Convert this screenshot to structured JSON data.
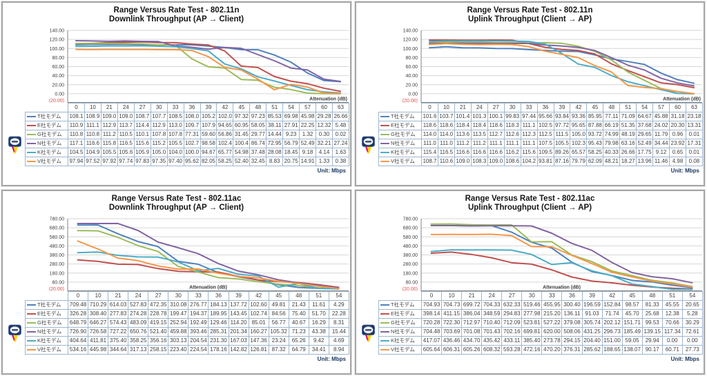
{
  "colors": {
    "grid": "#d6d6d6",
    "axis": "#808080",
    "negative_tick": "#e04b4b",
    "table_border": "#9eb6ce",
    "unit_text": "#17365d",
    "text": "#404040",
    "panel_border": "#a6a6a6"
  },
  "award_icon_label": "award-medal",
  "chart_data": [
    {
      "type": "line",
      "title": "Range Versus Rate Test - 802.11n",
      "subtitle": "Downlink  Throughput (AP → Client)",
      "xlabel": "Attenuation (dB)",
      "xlabel_align": "right",
      "unit_label": "Unit: Mbps",
      "legend_position": "table-left",
      "grid": true,
      "categories": [
        "0",
        "10",
        "21",
        "24",
        "27",
        "30",
        "33",
        "36",
        "39",
        "42",
        "45",
        "48",
        "51",
        "54",
        "57",
        "60",
        "63"
      ],
      "ylim": [
        -20,
        140
      ],
      "yticks": [
        140,
        120,
        100,
        80,
        60,
        40,
        20,
        0
      ],
      "ytick_labels": [
        "140.00",
        "120.00",
        "100.00",
        "80.00",
        "60.00",
        "40.00",
        "20.00",
        "0.00"
      ],
      "ymin": -20,
      "ymin_label": "(20.00)",
      "award_series": "N社モデム",
      "series": [
        {
          "name": "T社モデム",
          "color": "#4F81BD",
          "values": [
            "108.1",
            "108.9",
            "109.0",
            "109.0",
            "108.7",
            "107.7",
            "108.5",
            "108.0",
            "105.2",
            "102.0",
            "97.32",
            "97.23",
            "85.53",
            "69.98",
            "45.98",
            "29.28",
            "26.66"
          ]
        },
        {
          "name": "E社モデム",
          "color": "#C0504D",
          "values": [
            "110.9",
            "111.1",
            "112.9",
            "113.7",
            "114.4",
            "112.9",
            "113.0",
            "109.7",
            "107.9",
            "94.65",
            "60.95",
            "58.05",
            "38.11",
            "27.91",
            "22.25",
            "12.32",
            "5.48"
          ]
        },
        {
          "name": "G社モデム",
          "color": "#9BBB59",
          "values": [
            "110.8",
            "110.8",
            "111.2",
            "110.5",
            "110.1",
            "107.8",
            "107.8",
            "77.31",
            "59.60",
            "56.86",
            "31.45",
            "29.77",
            "14.44",
            "9.23",
            "1.32",
            "0.30",
            "0.02"
          ]
        },
        {
          "name": "N社モデム",
          "color": "#8064A2",
          "values": [
            "117.1",
            "116.6",
            "115.8",
            "116.5",
            "115.6",
            "115.2",
            "105.5",
            "102.7",
            "98.58",
            "102.4",
            "100.4",
            "86.74",
            "72.95",
            "56.79",
            "52.49",
            "32.21",
            "27.24"
          ]
        },
        {
          "name": "K社モデム",
          "color": "#4BACC6",
          "values": [
            "104.5",
            "104.9",
            "105.5",
            "105.6",
            "105.9",
            "105.0",
            "104.0",
            "100.0",
            "94.67",
            "65.77",
            "54.98",
            "37.48",
            "28.08",
            "18.45",
            "9.18",
            "4.14",
            "1.63"
          ]
        },
        {
          "name": "V社モデム",
          "color": "#F79646",
          "values": [
            "97.94",
            "97.52",
            "97.92",
            "97.74",
            "97.83",
            "97.35",
            "97.40",
            "95.62",
            "82.05",
            "58.25",
            "52.40",
            "32.45",
            "8.83",
            "20.75",
            "14.91",
            "1.33",
            "0.38"
          ]
        }
      ]
    },
    {
      "type": "line",
      "title": "Range Versus Rate Test - 802.11n",
      "subtitle": "Uplink Throughput (Client → AP)",
      "xlabel": "Attenuation (dB)",
      "xlabel_align": "right",
      "unit_label": "Unit: Mbps",
      "legend_position": "table-left",
      "grid": true,
      "categories": [
        "0",
        "10",
        "21",
        "24",
        "27",
        "30",
        "33",
        "36",
        "39",
        "42",
        "45",
        "48",
        "51",
        "54",
        "57",
        "60",
        "63"
      ],
      "ylim": [
        -20,
        140
      ],
      "yticks": [
        140,
        120,
        100,
        80,
        60,
        40,
        20,
        0
      ],
      "ytick_labels": [
        "140.00",
        "120.00",
        "100.00",
        "80.00",
        "60.00",
        "40.00",
        "20.00",
        "0.00"
      ],
      "ymin": -20,
      "ymin_label": "(20.00)",
      "award_series": "N社モデム",
      "series": [
        {
          "name": "T社モデム",
          "color": "#4F81BD",
          "values": [
            "101.6",
            "103.7",
            "101.4",
            "101.3",
            "100.1",
            "99.83",
            "97.44",
            "95.66",
            "93.84",
            "93.36",
            "85.95",
            "77.11",
            "71.09",
            "64.67",
            "45.88",
            "31.18",
            "23.18"
          ]
        },
        {
          "name": "E社モデム",
          "color": "#C0504D",
          "values": [
            "118.6",
            "118.6",
            "118.4",
            "118.4",
            "118.6",
            "118.3",
            "111.1",
            "102.5",
            "97.72",
            "95.65",
            "87.88",
            "66.19",
            "51.35",
            "37.68",
            "24.02",
            "20.30",
            "13.31"
          ]
        },
        {
          "name": "G社モデム",
          "color": "#9BBB59",
          "values": [
            "114.0",
            "114.0",
            "113.6",
            "113.5",
            "112.7",
            "112.6",
            "112.3",
            "112.5",
            "111.5",
            "105.0",
            "93.72",
            "74.99",
            "48.19",
            "29.65",
            "11.79",
            "0.96",
            "0.01"
          ]
        },
        {
          "name": "N社モデム",
          "color": "#8064A2",
          "values": [
            "111.0",
            "111.0",
            "111.2",
            "111.2",
            "111.1",
            "111.1",
            "111.1",
            "107.5",
            "105.5",
            "102.3",
            "95.43",
            "79.98",
            "63.16",
            "52.49",
            "34.44",
            "23.92",
            "17.31"
          ]
        },
        {
          "name": "K社モデム",
          "color": "#4BACC6",
          "values": [
            "115.4",
            "116.5",
            "116.6",
            "116.6",
            "116.6",
            "116.2",
            "115.6",
            "109.5",
            "89.26",
            "65.57",
            "58.25",
            "40.33",
            "26.66",
            "17.75",
            "9.12",
            "0.65",
            "0.01"
          ]
        },
        {
          "name": "V社モデム",
          "color": "#F79646",
          "values": [
            "108.7",
            "110.6",
            "109.0",
            "108.3",
            "109.0",
            "108.6",
            "104.2",
            "93.81",
            "87.16",
            "79.79",
            "62.09",
            "48.21",
            "18.27",
            "13.96",
            "11.46",
            "4.98",
            "0.08"
          ]
        }
      ]
    },
    {
      "type": "line",
      "title": "Range Versus Rate Test - 802.11ac",
      "subtitle": "Downlink  Throughput (AP → Client)",
      "xlabel": "Attenuation (dB)",
      "xlabel_align": "center",
      "unit_label": "Unit: Mbps",
      "legend_position": "table-left",
      "grid": true,
      "categories": [
        "0",
        "10",
        "21",
        "24",
        "27",
        "30",
        "33",
        "36",
        "39",
        "42",
        "45",
        "48",
        "51",
        "54"
      ],
      "ylim": [
        -20,
        780
      ],
      "yticks": [
        780,
        680,
        580,
        480,
        380,
        280,
        180,
        80
      ],
      "ytick_labels": [
        "780.00",
        "680.00",
        "580.00",
        "480.00",
        "380.00",
        "280.00",
        "180.00",
        "80.00"
      ],
      "ymin": -20,
      "ymin_label": "(20.00)",
      "award_series": "N社モデム",
      "series": [
        {
          "name": "T社モデム",
          "color": "#4F81BD",
          "values": [
            "709.48",
            "710.29",
            "614.03",
            "527.83",
            "472.35",
            "310.08",
            "276.77",
            "184.13",
            "137.72",
            "102.60",
            "49.81",
            "21.43",
            "11.61",
            "4.29"
          ]
        },
        {
          "name": "E社モデム",
          "color": "#C0504D",
          "values": [
            "326.28",
            "308.40",
            "277.83",
            "274.28",
            "228.78",
            "199.47",
            "194.37",
            "189.95",
            "143.45",
            "102.74",
            "84.56",
            "75.40",
            "51.70",
            "22.28"
          ]
        },
        {
          "name": "G社モデム",
          "color": "#9BBB59",
          "values": [
            "648.79",
            "646.27",
            "574.43",
            "483.09",
            "419.15",
            "252.94",
            "192.49",
            "129.46",
            "114.20",
            "85.01",
            "56.77",
            "40.67",
            "16.29",
            "8.31"
          ]
        },
        {
          "name": "N社モデム",
          "color": "#8064A2",
          "values": [
            "726.90",
            "726.58",
            "727.22",
            "650.76",
            "521.40",
            "459.88",
            "393.46",
            "285.31",
            "201.34",
            "160.27",
            "105.32",
            "71.23",
            "43.38",
            "15.44"
          ]
        },
        {
          "name": "K社モデム",
          "color": "#4BACC6",
          "values": [
            "404.64",
            "411.81",
            "375.40",
            "358.25",
            "356.16",
            "303.13",
            "204.54",
            "231.30",
            "167.03",
            "147.36",
            "23.24",
            "65.26",
            "9.42",
            "4.69"
          ]
        },
        {
          "name": "V社モデム",
          "color": "#F79646",
          "values": [
            "534.16",
            "445.98",
            "344.64",
            "317.13",
            "258.15",
            "223.40",
            "224.54",
            "178.16",
            "142.82",
            "126.81",
            "87.32",
            "64.79",
            "34.41",
            "8.94"
          ]
        }
      ]
    },
    {
      "type": "line",
      "title": "Range Versus Rate Test - 802.11ac",
      "subtitle": "Uplink Throughput (Client → AP)",
      "xlabel": "Attenuation (dB)",
      "xlabel_align": "center",
      "unit_label": "Unit: Mbps",
      "legend_position": "table-left",
      "grid": true,
      "categories": [
        "0",
        "10",
        "21",
        "24",
        "27",
        "30",
        "33",
        "36",
        "39",
        "42",
        "45",
        "48",
        "51",
        "54"
      ],
      "ylim": [
        -20,
        780
      ],
      "yticks": [
        780,
        680,
        580,
        480,
        380,
        280,
        180,
        80
      ],
      "ytick_labels": [
        "780.00",
        "680.00",
        "580.00",
        "480.00",
        "380.00",
        "280.00",
        "180.00",
        "80.00"
      ],
      "ymin": -20,
      "ymin_label": "(20.00)",
      "award_series": "N社モデム",
      "series": [
        {
          "name": "T社モデム",
          "color": "#4F81BD",
          "values": [
            "704.93",
            "704.73",
            "699.72",
            "704.33",
            "632.33",
            "519.46",
            "455.95",
            "300.40",
            "196.59",
            "152.84",
            "98.57",
            "81.33",
            "45.55",
            "20.65"
          ]
        },
        {
          "name": "E社モデム",
          "color": "#C0504D",
          "values": [
            "398.14",
            "411.15",
            "386.04",
            "348.59",
            "294.83",
            "277.98",
            "215.20",
            "136.11",
            "91.03",
            "71.74",
            "45.70",
            "25.68",
            "12.38",
            "5.28"
          ]
        },
        {
          "name": "G社モデム",
          "color": "#9BBB59",
          "values": [
            "720.28",
            "722.30",
            "712.97",
            "710.40",
            "712.09",
            "523.81",
            "527.22",
            "379.08",
            "305.74",
            "202.12",
            "151.71",
            "99.53",
            "70.66",
            "30.29"
          ]
        },
        {
          "name": "N社モデム",
          "color": "#8064A2",
          "values": [
            "704.48",
            "703.69",
            "701.08",
            "701.43",
            "702.16",
            "699.81",
            "620.00",
            "508.06",
            "431.25",
            "296.73",
            "185.49",
            "139.15",
            "117.34",
            "72.61"
          ]
        },
        {
          "name": "K社モデム",
          "color": "#4BACC6",
          "values": [
            "417.07",
            "436.46",
            "434.70",
            "435.42",
            "433.11",
            "385.40",
            "273.78",
            "294.15",
            "204.40",
            "151.00",
            "59.05",
            "29.94",
            "0.00",
            "0.00"
          ]
        },
        {
          "name": "V社モデム",
          "color": "#F79646",
          "values": [
            "605.64",
            "606.31",
            "605.26",
            "608.32",
            "593.28",
            "472.16",
            "470.20",
            "376.31",
            "285.62",
            "188.65",
            "138.07",
            "90.17",
            "60.71",
            "27.73"
          ]
        }
      ]
    }
  ]
}
